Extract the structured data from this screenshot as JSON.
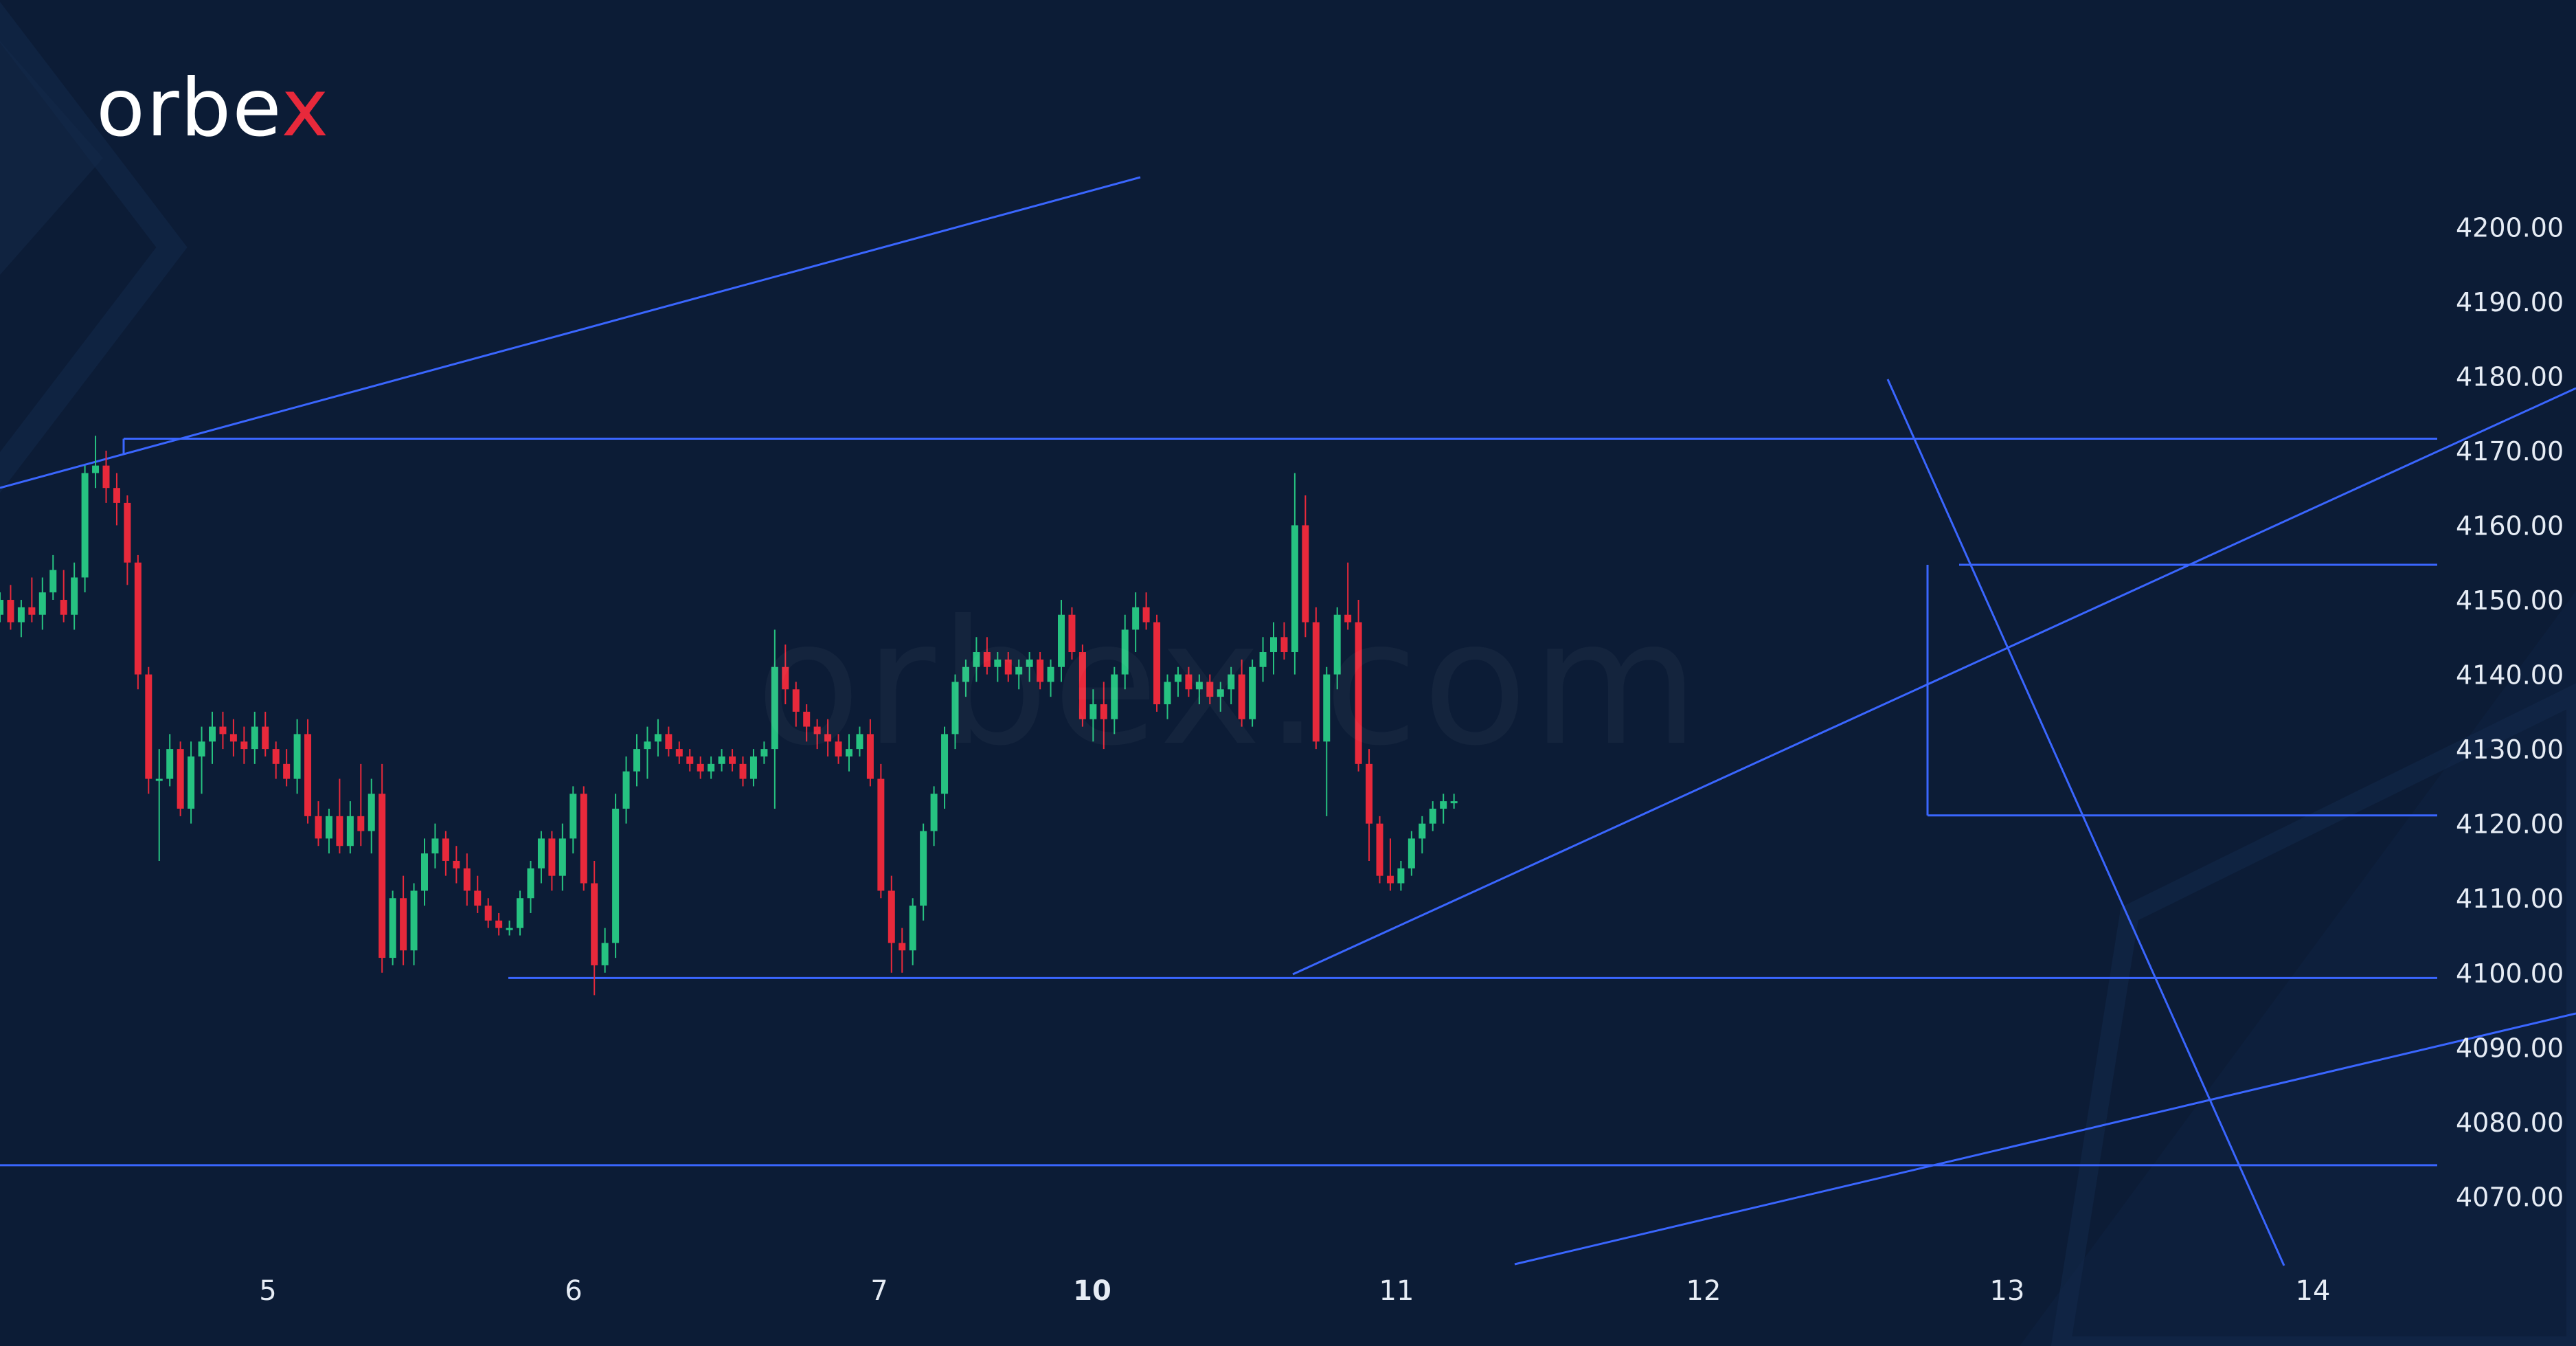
{
  "brand": {
    "logo_main": "orbe",
    "logo_x": "x",
    "watermark": "orbex.com",
    "accent": "#e8293b"
  },
  "colors": {
    "background": "#0c1c36",
    "up": "#26c281",
    "down": "#e8293b",
    "lines": "#3a66ff",
    "text": "#e6ecf5"
  },
  "chart_data": {
    "type": "candlestick",
    "title": "",
    "xlabel": "",
    "ylabel": "",
    "ylim": [
      4060,
      4212
    ],
    "y_ticks": [
      "4200.00",
      "4190.00",
      "4180.00",
      "4170.00",
      "4160.00",
      "4150.00",
      "4140.00",
      "4130.00",
      "4120.00",
      "4110.00",
      "4100.00",
      "4090.00",
      "4080.00",
      "4070.00"
    ],
    "x_ticks": [
      "5",
      "6",
      "7",
      "10",
      "11",
      "12",
      "13",
      "14"
    ],
    "x_ticks_bold": [
      "10"
    ],
    "grid": false,
    "candles": [
      [
        4148,
        4151,
        4147,
        4150
      ],
      [
        4150,
        4152,
        4146,
        4147
      ],
      [
        4147,
        4150,
        4145,
        4149
      ],
      [
        4149,
        4153,
        4147,
        4148
      ],
      [
        4148,
        4153,
        4146,
        4151
      ],
      [
        4151,
        4156,
        4150,
        4154
      ],
      [
        4150,
        4154,
        4147,
        4148
      ],
      [
        4148,
        4155,
        4146,
        4153
      ],
      [
        4153,
        4168,
        4151,
        4167
      ],
      [
        4167,
        4172,
        4165,
        4168
      ],
      [
        4168,
        4170,
        4163,
        4165
      ],
      [
        4165,
        4167,
        4160,
        4163
      ],
      [
        4163,
        4164,
        4152,
        4155
      ],
      [
        4155,
        4156,
        4138,
        4140
      ],
      [
        4140,
        4141,
        4124,
        4126
      ],
      [
        4126,
        4130,
        4115,
        4126
      ],
      [
        4126,
        4132,
        4125,
        4130
      ],
      [
        4130,
        4131,
        4121,
        4122
      ],
      [
        4122,
        4131,
        4120,
        4129
      ],
      [
        4129,
        4133,
        4124,
        4131
      ],
      [
        4131,
        4135,
        4128,
        4133
      ],
      [
        4133,
        4135,
        4130,
        4132
      ],
      [
        4132,
        4134,
        4129,
        4131
      ],
      [
        4131,
        4133,
        4128,
        4130
      ],
      [
        4130,
        4135,
        4128,
        4133
      ],
      [
        4133,
        4135,
        4129,
        4130
      ],
      [
        4130,
        4131,
        4126,
        4128
      ],
      [
        4128,
        4130,
        4125,
        4126
      ],
      [
        4126,
        4134,
        4124,
        4132
      ],
      [
        4132,
        4134,
        4120,
        4121
      ],
      [
        4121,
        4123,
        4117,
        4118
      ],
      [
        4118,
        4122,
        4116,
        4121
      ],
      [
        4121,
        4126,
        4116,
        4117
      ],
      [
        4117,
        4123,
        4116,
        4121
      ],
      [
        4121,
        4128,
        4117,
        4119
      ],
      [
        4119,
        4126,
        4116,
        4124
      ],
      [
        4124,
        4128,
        4100,
        4102
      ],
      [
        4102,
        4111,
        4101,
        4110
      ],
      [
        4110,
        4113,
        4101,
        4103
      ],
      [
        4103,
        4112,
        4101,
        4111
      ],
      [
        4111,
        4118,
        4109,
        4116
      ],
      [
        4116,
        4120,
        4114,
        4118
      ],
      [
        4118,
        4119,
        4113,
        4115
      ],
      [
        4115,
        4117,
        4112,
        4114
      ],
      [
        4114,
        4116,
        4109,
        4111
      ],
      [
        4111,
        4113,
        4108,
        4109
      ],
      [
        4109,
        4110,
        4106,
        4107
      ],
      [
        4107,
        4108,
        4105,
        4106
      ],
      [
        4106,
        4107,
        4105,
        4106
      ],
      [
        4106,
        4111,
        4105,
        4110
      ],
      [
        4110,
        4115,
        4108,
        4114
      ],
      [
        4114,
        4119,
        4112,
        4118
      ],
      [
        4118,
        4119,
        4111,
        4113
      ],
      [
        4113,
        4120,
        4111,
        4118
      ],
      [
        4118,
        4125,
        4116,
        4124
      ],
      [
        4124,
        4125,
        4111,
        4112
      ],
      [
        4112,
        4115,
        4097,
        4101
      ],
      [
        4101,
        4106,
        4100,
        4104
      ],
      [
        4104,
        4124,
        4102,
        4122
      ],
      [
        4122,
        4129,
        4120,
        4127
      ],
      [
        4127,
        4132,
        4125,
        4130
      ],
      [
        4130,
        4133,
        4126,
        4131
      ],
      [
        4131,
        4134,
        4129,
        4132
      ],
      [
        4132,
        4133,
        4129,
        4130
      ],
      [
        4130,
        4131,
        4128,
        4129
      ],
      [
        4129,
        4130,
        4127,
        4128
      ],
      [
        4128,
        4129,
        4126,
        4127
      ],
      [
        4127,
        4129,
        4126,
        4128
      ],
      [
        4128,
        4130,
        4127,
        4129
      ],
      [
        4129,
        4130,
        4127,
        4128
      ],
      [
        4128,
        4129,
        4125,
        4126
      ],
      [
        4126,
        4130,
        4125,
        4129
      ],
      [
        4129,
        4131,
        4128,
        4130
      ],
      [
        4130,
        4146,
        4122,
        4141
      ],
      [
        4141,
        4144,
        4136,
        4138
      ],
      [
        4138,
        4139,
        4133,
        4135
      ],
      [
        4135,
        4136,
        4131,
        4133
      ],
      [
        4133,
        4134,
        4130,
        4132
      ],
      [
        4132,
        4134,
        4129,
        4131
      ],
      [
        4131,
        4132,
        4128,
        4129
      ],
      [
        4129,
        4132,
        4127,
        4130
      ],
      [
        4130,
        4133,
        4129,
        4132
      ],
      [
        4132,
        4134,
        4125,
        4126
      ],
      [
        4126,
        4128,
        4110,
        4111
      ],
      [
        4111,
        4113,
        4100,
        4104
      ],
      [
        4104,
        4106,
        4100,
        4103
      ],
      [
        4103,
        4110,
        4101,
        4109
      ],
      [
        4109,
        4120,
        4107,
        4119
      ],
      [
        4119,
        4125,
        4117,
        4124
      ],
      [
        4124,
        4133,
        4122,
        4132
      ],
      [
        4132,
        4140,
        4130,
        4139
      ],
      [
        4139,
        4142,
        4137,
        4141
      ],
      [
        4141,
        4145,
        4139,
        4143
      ],
      [
        4143,
        4145,
        4140,
        4141
      ],
      [
        4141,
        4143,
        4139,
        4142
      ],
      [
        4142,
        4143,
        4139,
        4140
      ],
      [
        4140,
        4142,
        4138,
        4141
      ],
      [
        4141,
        4143,
        4139,
        4142
      ],
      [
        4142,
        4143,
        4138,
        4139
      ],
      [
        4139,
        4142,
        4137,
        4141
      ],
      [
        4141,
        4150,
        4139,
        4148
      ],
      [
        4148,
        4149,
        4142,
        4143
      ],
      [
        4143,
        4144,
        4133,
        4134
      ],
      [
        4134,
        4138,
        4131,
        4136
      ],
      [
        4136,
        4139,
        4130,
        4134
      ],
      [
        4134,
        4141,
        4132,
        4140
      ],
      [
        4140,
        4148,
        4138,
        4146
      ],
      [
        4146,
        4151,
        4143,
        4149
      ],
      [
        4149,
        4151,
        4146,
        4147
      ],
      [
        4147,
        4148,
        4135,
        4136
      ],
      [
        4136,
        4140,
        4134,
        4139
      ],
      [
        4139,
        4141,
        4137,
        4140
      ],
      [
        4140,
        4141,
        4137,
        4138
      ],
      [
        4138,
        4140,
        4136,
        4139
      ],
      [
        4139,
        4140,
        4136,
        4137
      ],
      [
        4137,
        4139,
        4135,
        4138
      ],
      [
        4138,
        4141,
        4136,
        4140
      ],
      [
        4140,
        4142,
        4133,
        4134
      ],
      [
        4134,
        4142,
        4133,
        4141
      ],
      [
        4141,
        4145,
        4139,
        4143
      ],
      [
        4143,
        4147,
        4140,
        4145
      ],
      [
        4145,
        4147,
        4142,
        4143
      ],
      [
        4143,
        4167,
        4140,
        4160
      ],
      [
        4160,
        4164,
        4145,
        4147
      ],
      [
        4147,
        4149,
        4130,
        4131
      ],
      [
        4131,
        4141,
        4121,
        4140
      ],
      [
        4140,
        4149,
        4138,
        4148
      ],
      [
        4148,
        4155,
        4146,
        4147
      ],
      [
        4147,
        4150,
        4127,
        4128
      ],
      [
        4128,
        4130,
        4115,
        4120
      ],
      [
        4120,
        4121,
        4112,
        4113
      ],
      [
        4113,
        4118,
        4111,
        4112
      ],
      [
        4112,
        4115,
        4111,
        4114
      ],
      [
        4114,
        4119,
        4113,
        4118
      ],
      [
        4118,
        4121,
        4116,
        4120
      ],
      [
        4120,
        4123,
        4119,
        4122
      ],
      [
        4122,
        4124,
        4120,
        4123
      ],
      [
        4123,
        4124,
        4122,
        4123
      ]
    ],
    "levels": [
      4171.6,
      4099.3,
      4074.2,
      4121.1,
      4154.7
    ]
  }
}
